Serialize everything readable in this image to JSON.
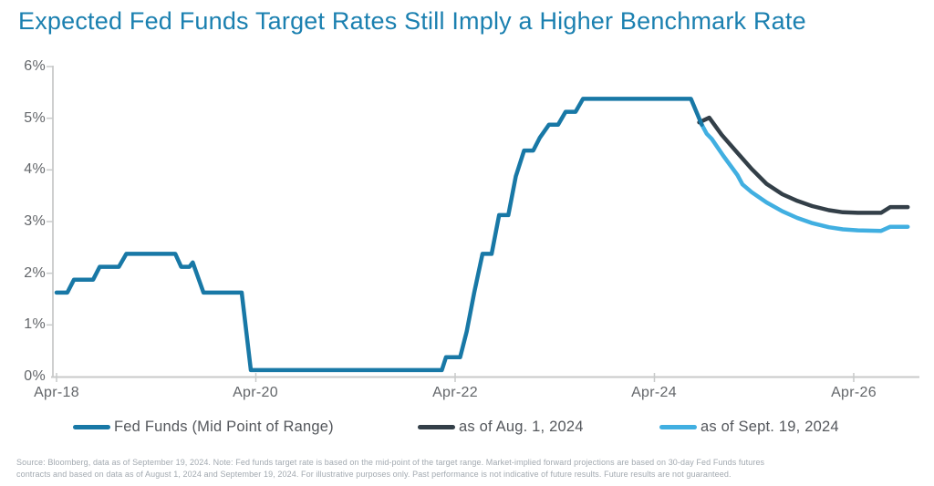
{
  "chart_data": {
    "type": "line",
    "title": "Expected Fed Funds Target Rates Still Imply a Higher Benchmark Rate",
    "xlabel": "",
    "ylabel": "",
    "ylim": [
      0,
      6
    ],
    "grid": false,
    "legend_position": "bottom",
    "y_tick_labels": [
      "6%",
      "5%",
      "4%",
      "3%",
      "2%",
      "1%",
      "0%"
    ],
    "y_tick_values": [
      6,
      5,
      4,
      3,
      2,
      1,
      0
    ],
    "x_tick_labels": [
      "Apr-18",
      "Apr-20",
      "Apr-22",
      "Apr-24",
      "Apr-26"
    ],
    "x_tick_months_from_apr18": [
      0,
      24,
      48,
      72,
      96
    ],
    "x_unit": "months since Apr-2018",
    "series": [
      {
        "name": "Fed Funds (Mid Point of Range)",
        "color": "#1878A6",
        "points": [
          [
            0,
            1.625
          ],
          [
            1.3,
            1.625
          ],
          [
            2.1,
            1.875
          ],
          [
            4.4,
            1.875
          ],
          [
            5.2,
            2.125
          ],
          [
            7.5,
            2.125
          ],
          [
            8.4,
            2.375
          ],
          [
            14.3,
            2.375
          ],
          [
            15.0,
            2.125
          ],
          [
            16.0,
            2.125
          ],
          [
            16.4,
            2.21
          ],
          [
            17.7,
            1.625
          ],
          [
            22.3,
            1.625
          ],
          [
            23.4,
            0.125
          ],
          [
            46.4,
            0.125
          ],
          [
            46.9,
            0.375
          ],
          [
            48.6,
            0.375
          ],
          [
            49.4,
            0.875
          ],
          [
            50.3,
            1.625
          ],
          [
            51.3,
            2.375
          ],
          [
            52.4,
            2.375
          ],
          [
            53.3,
            3.125
          ],
          [
            54.4,
            3.125
          ],
          [
            55.3,
            3.875
          ],
          [
            56.3,
            4.375
          ],
          [
            57.4,
            4.375
          ],
          [
            58.2,
            4.625
          ],
          [
            59.3,
            4.875
          ],
          [
            60.4,
            4.875
          ],
          [
            61.3,
            5.125
          ],
          [
            62.5,
            5.125
          ],
          [
            63.4,
            5.375
          ],
          [
            76.4,
            5.375
          ],
          [
            77.7,
            4.875
          ]
        ]
      },
      {
        "name": "as of Aug. 1, 2024",
        "color": "#333F48",
        "points": [
          [
            77.4,
            4.92
          ],
          [
            78.6,
            5.01
          ],
          [
            80.1,
            4.68
          ],
          [
            82,
            4.33
          ],
          [
            83.7,
            4.02
          ],
          [
            85.5,
            3.73
          ],
          [
            87.4,
            3.53
          ],
          [
            89.2,
            3.4
          ],
          [
            91,
            3.3
          ],
          [
            93,
            3.22
          ],
          [
            94.7,
            3.18
          ],
          [
            96.5,
            3.17
          ],
          [
            99.3,
            3.17
          ],
          [
            100.4,
            3.28
          ],
          [
            102.5,
            3.28
          ]
        ]
      },
      {
        "name": "as of Sept. 19, 2024",
        "color": "#41AFE1",
        "points": [
          [
            77.7,
            4.875
          ],
          [
            78.3,
            4.7
          ],
          [
            78.9,
            4.6
          ],
          [
            80.3,
            4.27
          ],
          [
            82,
            3.9
          ],
          [
            82.6,
            3.72
          ],
          [
            83.7,
            3.57
          ],
          [
            85.5,
            3.37
          ],
          [
            87.4,
            3.2
          ],
          [
            89.2,
            3.07
          ],
          [
            91,
            2.97
          ],
          [
            93,
            2.89
          ],
          [
            94.7,
            2.85
          ],
          [
            96.5,
            2.83
          ],
          [
            99.3,
            2.82
          ],
          [
            100.4,
            2.9
          ],
          [
            102.5,
            2.9
          ]
        ]
      }
    ],
    "legend": [
      {
        "label": "Fed Funds (Mid Point of Range)"
      },
      {
        "label": "as of Aug. 1, 2024"
      },
      {
        "label": "as of Sept. 19, 2024"
      }
    ]
  },
  "footer": {
    "line1": "Source: Bloomberg, data as of September 19, 2024. Note: Fed funds target rate is based on the mid-point of the target range. Market-implied forward projections are based on 30-day Fed Funds futures",
    "line2": "contracts and based on data as of August 1, 2024 and September 19, 2024. For illustrative purposes only. Past performance is not indicative of future results. Future results are not guaranteed."
  },
  "colors": {
    "title": "#1B80B0",
    "fed_funds": "#1878A6",
    "aug1_projection": "#333F48",
    "sept19_projection": "#41AFE1",
    "axis": "#C8CACA",
    "tick_text": "#63666A",
    "legend_text": "#54575C",
    "footnote_text": "#A2A9B0"
  }
}
